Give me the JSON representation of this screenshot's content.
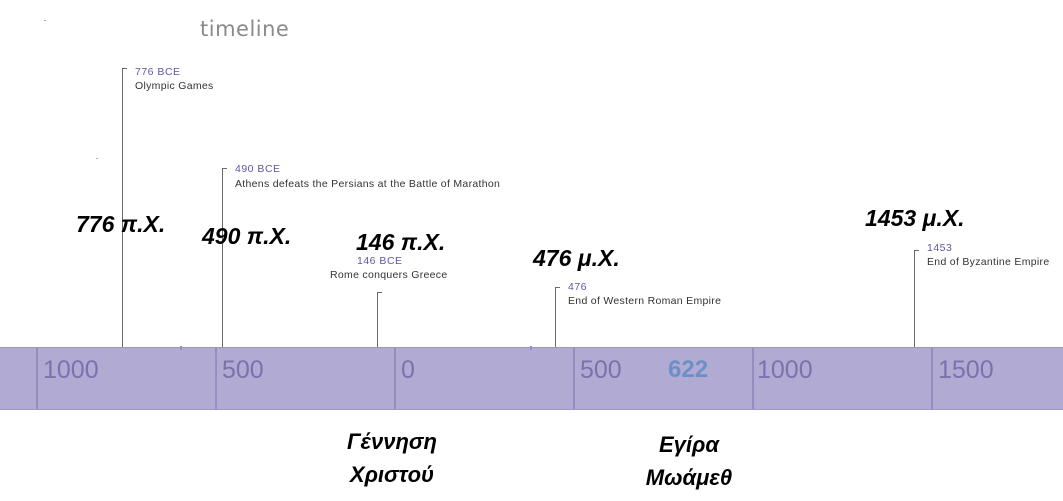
{
  "title": "timeline",
  "axis": {
    "ticks": [
      "1000",
      "500",
      "0",
      "500",
      "1000",
      "1500"
    ],
    "hijra_year": "622"
  },
  "events": [
    {
      "date": "776 BCE",
      "desc": "Olympic Games",
      "greek": "776 π.Χ."
    },
    {
      "date": "490 BCE",
      "desc": "Athens defeats the Persians at the Battle of Marathon",
      "greek": "490 π.Χ."
    },
    {
      "date": "146 BCE",
      "desc": "Rome conquers Greece",
      "greek": "146 π.Χ."
    },
    {
      "date": "476",
      "desc": "End of Western Roman Empire",
      "greek": "476 μ.Χ."
    },
    {
      "date": "1453",
      "desc": "End of Byzantine Empire",
      "greek": "1453 μ.Χ."
    }
  ],
  "notes": {
    "birth_of_christ": [
      "Γέννηση",
      "Χριστού"
    ],
    "hijra": [
      "Εγίρα",
      "Μωάμεθ"
    ]
  },
  "colors": {
    "band": "#b1abd3",
    "tick_text": "#7a72ad",
    "event_date": "#5e57a8",
    "hijra": "#6d8fc7"
  }
}
